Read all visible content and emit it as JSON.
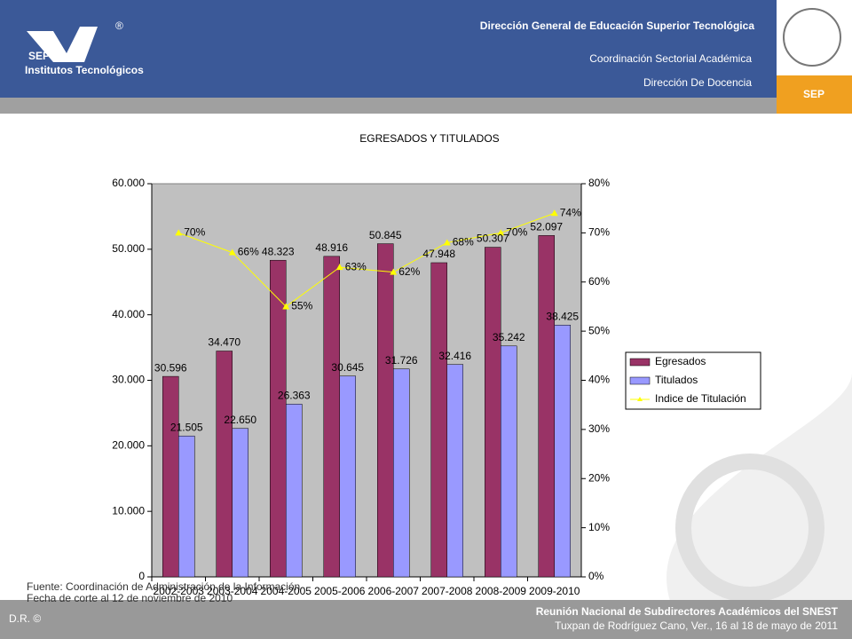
{
  "header": {
    "title": "Dirección General de Educación Superior Tecnológica",
    "subtitle": "Coordinación Sectorial Académica",
    "department": "Dirección De Docencia",
    "logo_text": "SEP",
    "logo_caption": "Institutos Tecnológicos",
    "registered": "®",
    "right_logo": "SEP"
  },
  "source": [
    "Fuente: Coordinación de Administración de la Información",
    "Fecha de corte al 12 de noviembre de 2010"
  ],
  "footer": {
    "copyright": "D.R. ©",
    "event": "Reunión Nacional de Subdirectores Académicos del SNEST",
    "place": "Tuxpan de Rodríguez  Cano, Ver.,  16 al 18 de mayo de 2011"
  },
  "chart_data": {
    "type": "bar",
    "title": "EGRESADOS Y TITULADOS",
    "categories": [
      "2002-2003",
      "2003-2004",
      "2004-2005",
      "2005-2006",
      "2006-2007",
      "2007-2008",
      "2008-2009",
      "2009-2010"
    ],
    "series": [
      {
        "name": "Egresados",
        "color": "#993366",
        "values": [
          30596,
          34470,
          48323,
          48916,
          50845,
          47948,
          50307,
          52097
        ],
        "value_labels": [
          "30.596",
          "34.470",
          "48.323",
          "48.916",
          "50.845",
          "47.948",
          "50.307",
          "52.097"
        ]
      },
      {
        "name": "Titulados",
        "color": "#9999ff",
        "values": [
          21505,
          22650,
          26363,
          30645,
          31726,
          32416,
          35242,
          38425
        ],
        "value_labels": [
          "21.505",
          "22.650",
          "26.363",
          "30.645",
          "31.726",
          "32.416",
          "35.242",
          "38.425"
        ]
      },
      {
        "name": "Indice de Titulación",
        "color": "#ffff00",
        "type": "line",
        "axis": "y2",
        "values": [
          70,
          66,
          55,
          63,
          62,
          68,
          70,
          74
        ],
        "value_labels": [
          "70%",
          "66%",
          "55%",
          "63%",
          "62%",
          "68%",
          "70%",
          "74%"
        ]
      }
    ],
    "ylim": [
      0,
      60000
    ],
    "yticks": [
      0,
      {
        "value": 10000,
        "label": "10.000"
      },
      {
        "value": 20000,
        "label": "20.000"
      },
      {
        "value": 30000,
        "label": "30.000"
      },
      {
        "value": 40000,
        "label": "40.000"
      },
      {
        "value": 50000,
        "label": "50.000"
      },
      {
        "value": 60000,
        "label": "60.000"
      }
    ],
    "y2lim": [
      0,
      80
    ],
    "y2ticks": [
      {
        "value": 0,
        "label": "0%"
      },
      {
        "value": 10,
        "label": "10%"
      },
      {
        "value": 20,
        "label": "20%"
      },
      {
        "value": 30,
        "label": "30%"
      },
      {
        "value": 40,
        "label": "40%"
      },
      {
        "value": 50,
        "label": "50%"
      },
      {
        "value": 60,
        "label": "60%"
      },
      {
        "value": 70,
        "label": "70%"
      },
      {
        "value": 80,
        "label": "80%"
      }
    ],
    "legend": "right"
  }
}
